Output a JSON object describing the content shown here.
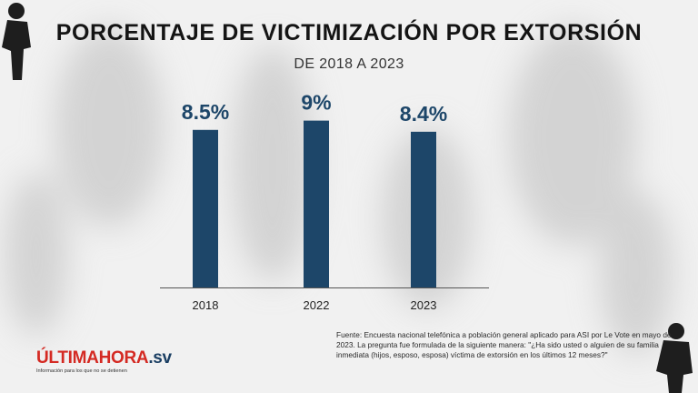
{
  "header": {
    "title": "PORCENTAJE DE VICTIMIZACIÓN POR EXTORSIÓN",
    "subtitle": "DE 2018 A 2023"
  },
  "chart_data": {
    "type": "bar",
    "categories": [
      "2018",
      "2022",
      "2023"
    ],
    "values": [
      8.5,
      9,
      8.4
    ],
    "value_labels": [
      "8.5%",
      "9%",
      "8.4%"
    ],
    "title": "PORCENTAJE DE VICTIMIZACIÓN POR EXTORSIÓN",
    "subtitle": "DE 2018 A 2023",
    "xlabel": "",
    "ylabel": "",
    "ylim": [
      0,
      10.6
    ],
    "grid": false,
    "legend": "none",
    "bar_color": "#1d4669",
    "label_color": "#1d4669"
  },
  "footer": {
    "source": "Fuente: Encuesta nacional telefónica a población general aplicado para ASI por Le Vote en mayo de 2023. La pregunta fue formulada de la siguiente manera: \"¿Ha sido usted o alguien de su familia inmediata (hijos, esposo, esposa) víctima de extorsión en los últimos 12 meses?\""
  },
  "logo": {
    "part1": "ÚLTIMA",
    "part2": "HORA",
    "part3": ".sv",
    "tagline": "Información para los que no se detienen"
  },
  "colors": {
    "accent": "#d42a23",
    "brand_dark": "#1b3f63",
    "bar": "#1d4669"
  }
}
